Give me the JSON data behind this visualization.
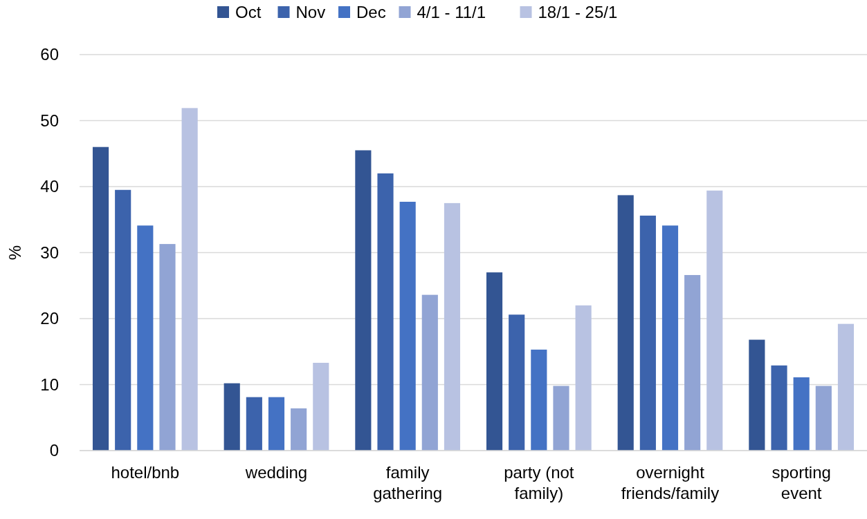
{
  "chart_data": {
    "type": "bar",
    "ylabel": "%",
    "categories": [
      "hotel/bnb",
      "wedding",
      "family gathering",
      "party (not family)",
      "overnight friends/family",
      "sporting event"
    ],
    "series": [
      {
        "name": "Oct",
        "color": "#335593",
        "values": [
          46.0,
          10.2,
          45.5,
          27.0,
          38.7,
          16.8
        ]
      },
      {
        "name": "Nov",
        "color": "#3c63ac",
        "values": [
          39.5,
          8.1,
          42.0,
          20.6,
          35.6,
          12.9
        ]
      },
      {
        "name": "Dec",
        "color": "#4472c4",
        "values": [
          34.1,
          8.1,
          37.7,
          15.3,
          34.1,
          11.1
        ]
      },
      {
        "name": "4/1 - 11/1",
        "color": "#91a4d4",
        "values": [
          31.3,
          6.4,
          23.6,
          9.8,
          26.6,
          9.8
        ]
      },
      {
        "name": "18/1 - 25/1",
        "color": "#b8c2e2",
        "values": [
          51.9,
          13.3,
          37.5,
          22.0,
          39.4,
          19.2
        ]
      }
    ],
    "ylim": [
      0,
      60
    ],
    "yticks": [
      0,
      10,
      20,
      30,
      40,
      50,
      60
    ],
    "grid": "y",
    "legend": "top"
  }
}
